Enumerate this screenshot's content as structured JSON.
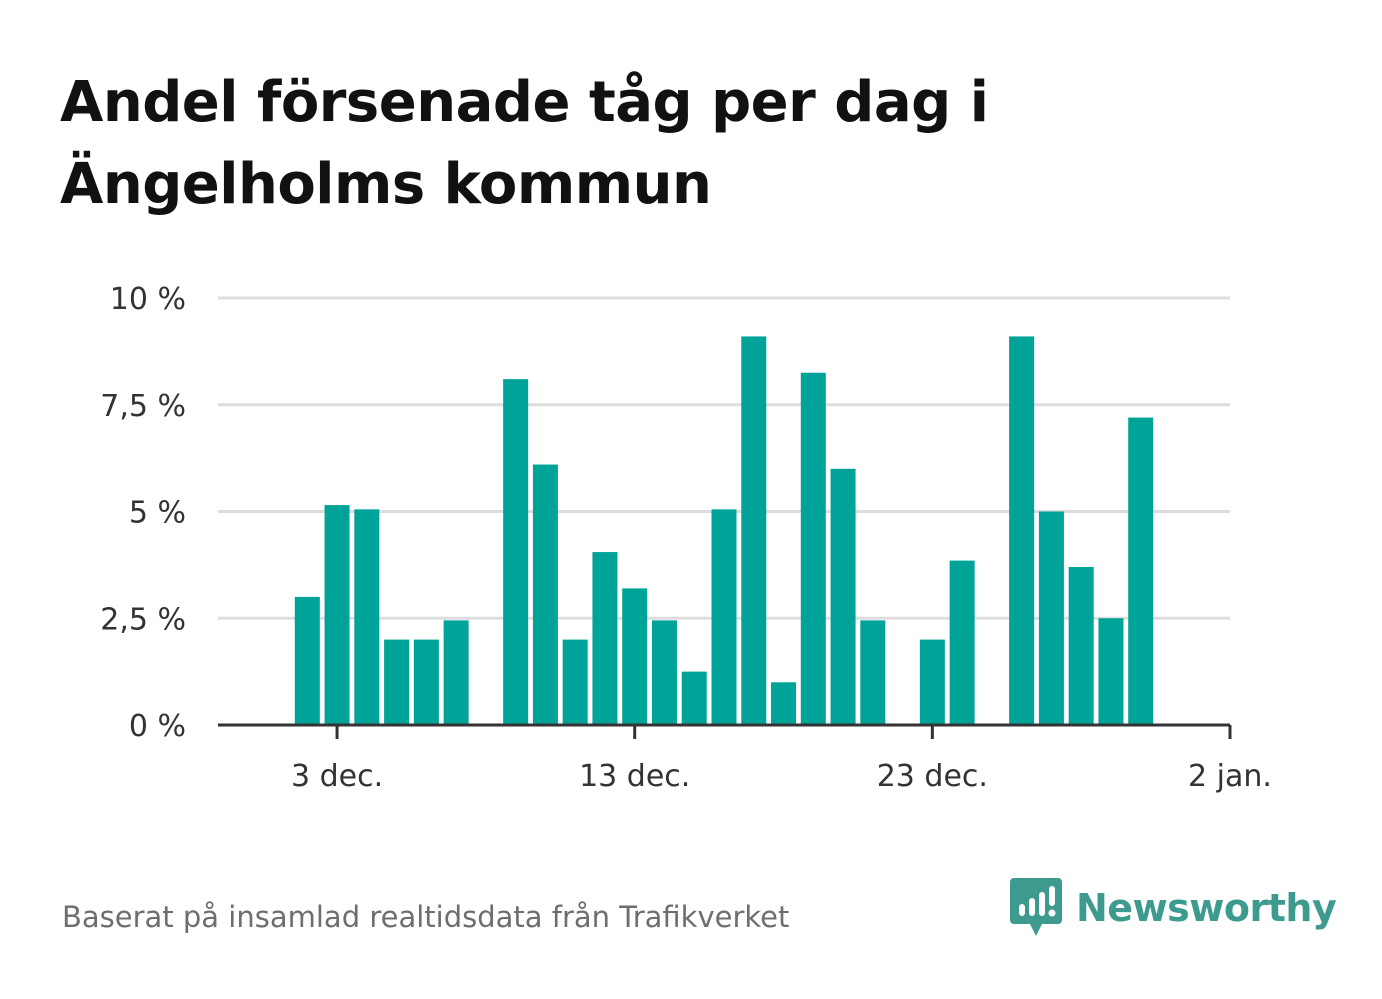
{
  "title": "Andel försenade tåg per dag i Ängelholms kommun",
  "footer": {
    "source": "Baserat på insamlad realtidsdata från Trafikverket",
    "brand": "Newsworthy"
  },
  "colors": {
    "bar": "#00a398",
    "grid": "#dddddd",
    "axis": "#333333",
    "brand": "#3d9a8f"
  },
  "chart_data": {
    "type": "bar",
    "ylim": [
      0,
      10
    ],
    "y_ticks": [
      {
        "value": 0,
        "label": "0 %"
      },
      {
        "value": 2.5,
        "label": "2,5 %"
      },
      {
        "value": 5,
        "label": "5 %"
      },
      {
        "value": 7.5,
        "label": "7,5 %"
      },
      {
        "value": 10,
        "label": "10 %"
      }
    ],
    "x_ticks": [
      {
        "value": "2024-12-03",
        "label": "3 dec."
      },
      {
        "value": "2024-12-13",
        "label": "13 dec."
      },
      {
        "value": "2024-12-23",
        "label": "23 dec."
      },
      {
        "value": "2025-01-02",
        "label": "2 jan."
      }
    ],
    "xlim": [
      "2024-11-29",
      "2025-01-02"
    ],
    "grid": true,
    "bars": [
      {
        "date": "2024-12-02",
        "value": 3.0
      },
      {
        "date": "2024-12-03",
        "value": 5.15
      },
      {
        "date": "2024-12-04",
        "value": 5.05
      },
      {
        "date": "2024-12-05",
        "value": 2.0
      },
      {
        "date": "2024-12-06",
        "value": 2.0
      },
      {
        "date": "2024-12-07",
        "value": 2.45
      },
      {
        "date": "2024-12-09",
        "value": 8.1
      },
      {
        "date": "2024-12-10",
        "value": 6.1
      },
      {
        "date": "2024-12-11",
        "value": 2.0
      },
      {
        "date": "2024-12-12",
        "value": 4.05
      },
      {
        "date": "2024-12-13",
        "value": 3.2
      },
      {
        "date": "2024-12-14",
        "value": 2.45
      },
      {
        "date": "2024-12-15",
        "value": 1.25
      },
      {
        "date": "2024-12-16",
        "value": 5.05
      },
      {
        "date": "2024-12-17",
        "value": 9.1
      },
      {
        "date": "2024-12-18",
        "value": 1.0
      },
      {
        "date": "2024-12-19",
        "value": 8.25
      },
      {
        "date": "2024-12-20",
        "value": 6.0
      },
      {
        "date": "2024-12-21",
        "value": 2.45
      },
      {
        "date": "2024-12-23",
        "value": 2.0
      },
      {
        "date": "2024-12-24",
        "value": 3.85
      },
      {
        "date": "2024-12-26",
        "value": 9.1
      },
      {
        "date": "2024-12-27",
        "value": 5.0
      },
      {
        "date": "2024-12-28",
        "value": 3.7
      },
      {
        "date": "2024-12-29",
        "value": 2.5
      },
      {
        "date": "2024-12-30",
        "value": 7.2
      }
    ]
  }
}
